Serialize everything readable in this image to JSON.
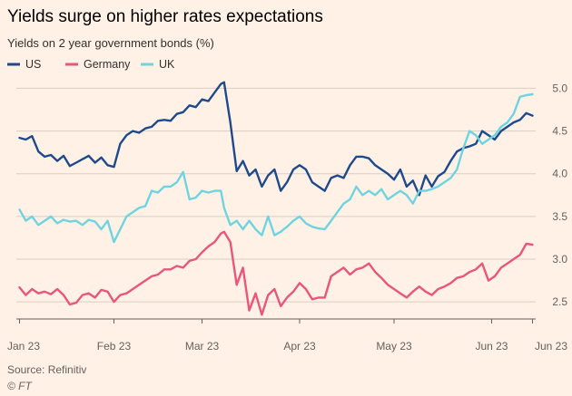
{
  "chart_data": {
    "type": "line",
    "title": "Yields surge on higher rates expectations",
    "subtitle": "Yields on 2 year government bonds (%)",
    "source": "Source: Refinitiv",
    "credit": "© FT",
    "x_tick_labels": [
      "Jan 23",
      "Feb 23",
      "Mar 23",
      "Apr 23",
      "May 23",
      "Jun 23",
      "Jun 23"
    ],
    "x_tick_dates": [
      "2023-01-02",
      "2023-02-01",
      "2023-03-01",
      "2023-04-01",
      "2023-05-01",
      "2023-06-01",
      "2023-06-14"
    ],
    "x_range": [
      "2023-01-01",
      "2023-06-15"
    ],
    "ylim": [
      2.3,
      5.1
    ],
    "y_ticks": [
      2.5,
      3.0,
      3.5,
      4.0,
      4.5,
      5.0
    ],
    "y_tick_labels": [
      "2.5",
      "3.0",
      "3.5",
      "4.0",
      "4.5",
      "5.0"
    ],
    "legend_position": "top-left",
    "grid": true,
    "series": [
      {
        "name": "US",
        "color": "#1e4a8c",
        "x": [
          "2023-01-02",
          "2023-01-04",
          "2023-01-06",
          "2023-01-08",
          "2023-01-10",
          "2023-01-12",
          "2023-01-14",
          "2023-01-16",
          "2023-01-18",
          "2023-01-20",
          "2023-01-22",
          "2023-01-24",
          "2023-01-26",
          "2023-01-28",
          "2023-01-30",
          "2023-02-01",
          "2023-02-03",
          "2023-02-05",
          "2023-02-07",
          "2023-02-09",
          "2023-02-11",
          "2023-02-13",
          "2023-02-15",
          "2023-02-17",
          "2023-02-19",
          "2023-02-21",
          "2023-02-23",
          "2023-02-25",
          "2023-02-27",
          "2023-03-01",
          "2023-03-03",
          "2023-03-05",
          "2023-03-07",
          "2023-03-08",
          "2023-03-10",
          "2023-03-12",
          "2023-03-14",
          "2023-03-16",
          "2023-03-18",
          "2023-03-20",
          "2023-03-22",
          "2023-03-24",
          "2023-03-26",
          "2023-03-28",
          "2023-03-30",
          "2023-04-01",
          "2023-04-03",
          "2023-04-05",
          "2023-04-07",
          "2023-04-09",
          "2023-04-11",
          "2023-04-13",
          "2023-04-15",
          "2023-04-17",
          "2023-04-19",
          "2023-04-21",
          "2023-04-23",
          "2023-04-25",
          "2023-04-27",
          "2023-04-29",
          "2023-05-01",
          "2023-05-03",
          "2023-05-05",
          "2023-05-07",
          "2023-05-09",
          "2023-05-11",
          "2023-05-13",
          "2023-05-15",
          "2023-05-17",
          "2023-05-19",
          "2023-05-21",
          "2023-05-23",
          "2023-05-25",
          "2023-05-27",
          "2023-05-29",
          "2023-05-31",
          "2023-06-02",
          "2023-06-04",
          "2023-06-06",
          "2023-06-08",
          "2023-06-10",
          "2023-06-12",
          "2023-06-14"
        ],
        "values": [
          4.42,
          4.4,
          4.44,
          4.26,
          4.2,
          4.22,
          4.15,
          4.21,
          4.09,
          4.13,
          4.17,
          4.21,
          4.13,
          4.19,
          4.1,
          4.08,
          4.35,
          4.45,
          4.5,
          4.48,
          4.53,
          4.55,
          4.62,
          4.63,
          4.62,
          4.7,
          4.72,
          4.8,
          4.78,
          4.87,
          4.85,
          4.95,
          5.05,
          5.07,
          4.6,
          4.03,
          4.15,
          3.98,
          4.05,
          3.85,
          3.98,
          4.05,
          3.8,
          3.9,
          4.05,
          4.1,
          4.05,
          3.9,
          3.85,
          3.8,
          3.95,
          3.98,
          3.95,
          4.1,
          4.2,
          4.2,
          4.18,
          4.1,
          4.05,
          4.0,
          3.93,
          4.05,
          3.85,
          3.92,
          3.75,
          3.98,
          3.85,
          3.97,
          4.02,
          4.15,
          4.26,
          4.3,
          4.32,
          4.35,
          4.5,
          4.45,
          4.4,
          4.5,
          4.55,
          4.6,
          4.63,
          4.71,
          4.68
        ]
      },
      {
        "name": "Germany",
        "color": "#e8577a",
        "x": [
          "2023-01-02",
          "2023-01-04",
          "2023-01-06",
          "2023-01-08",
          "2023-01-10",
          "2023-01-12",
          "2023-01-14",
          "2023-01-16",
          "2023-01-18",
          "2023-01-20",
          "2023-01-22",
          "2023-01-24",
          "2023-01-26",
          "2023-01-28",
          "2023-01-30",
          "2023-02-01",
          "2023-02-03",
          "2023-02-05",
          "2023-02-07",
          "2023-02-09",
          "2023-02-11",
          "2023-02-13",
          "2023-02-15",
          "2023-02-17",
          "2023-02-19",
          "2023-02-21",
          "2023-02-23",
          "2023-02-25",
          "2023-02-27",
          "2023-03-01",
          "2023-03-03",
          "2023-03-05",
          "2023-03-07",
          "2023-03-08",
          "2023-03-10",
          "2023-03-12",
          "2023-03-14",
          "2023-03-16",
          "2023-03-18",
          "2023-03-20",
          "2023-03-22",
          "2023-03-24",
          "2023-03-26",
          "2023-03-28",
          "2023-03-30",
          "2023-04-01",
          "2023-04-03",
          "2023-04-05",
          "2023-04-07",
          "2023-04-09",
          "2023-04-11",
          "2023-04-13",
          "2023-04-15",
          "2023-04-17",
          "2023-04-19",
          "2023-04-21",
          "2023-04-23",
          "2023-04-25",
          "2023-04-27",
          "2023-04-29",
          "2023-05-01",
          "2023-05-03",
          "2023-05-05",
          "2023-05-07",
          "2023-05-09",
          "2023-05-11",
          "2023-05-13",
          "2023-05-15",
          "2023-05-17",
          "2023-05-19",
          "2023-05-21",
          "2023-05-23",
          "2023-05-25",
          "2023-05-27",
          "2023-05-29",
          "2023-05-31",
          "2023-06-02",
          "2023-06-04",
          "2023-06-06",
          "2023-06-08",
          "2023-06-10",
          "2023-06-12",
          "2023-06-14"
        ],
        "values": [
          2.67,
          2.58,
          2.65,
          2.6,
          2.62,
          2.59,
          2.65,
          2.58,
          2.47,
          2.49,
          2.58,
          2.6,
          2.55,
          2.64,
          2.62,
          2.5,
          2.58,
          2.6,
          2.65,
          2.7,
          2.75,
          2.8,
          2.82,
          2.88,
          2.88,
          2.92,
          2.9,
          2.98,
          3.0,
          3.08,
          3.15,
          3.2,
          3.3,
          3.32,
          3.2,
          2.7,
          2.9,
          2.4,
          2.6,
          2.35,
          2.58,
          2.65,
          2.45,
          2.55,
          2.62,
          2.72,
          2.65,
          2.53,
          2.55,
          2.55,
          2.8,
          2.85,
          2.9,
          2.82,
          2.88,
          2.9,
          2.95,
          2.85,
          2.78,
          2.7,
          2.65,
          2.6,
          2.55,
          2.62,
          2.68,
          2.62,
          2.58,
          2.65,
          2.68,
          2.72,
          2.78,
          2.8,
          2.85,
          2.88,
          2.95,
          2.75,
          2.8,
          2.9,
          2.95,
          3.0,
          3.05,
          3.18,
          3.17
        ]
      },
      {
        "name": "UK",
        "color": "#6fd4e0",
        "x": [
          "2023-01-02",
          "2023-01-04",
          "2023-01-06",
          "2023-01-08",
          "2023-01-10",
          "2023-01-12",
          "2023-01-14",
          "2023-01-16",
          "2023-01-18",
          "2023-01-20",
          "2023-01-22",
          "2023-01-24",
          "2023-01-26",
          "2023-01-28",
          "2023-01-30",
          "2023-02-01",
          "2023-02-03",
          "2023-02-05",
          "2023-02-07",
          "2023-02-09",
          "2023-02-11",
          "2023-02-13",
          "2023-02-15",
          "2023-02-17",
          "2023-02-19",
          "2023-02-21",
          "2023-02-23",
          "2023-02-25",
          "2023-02-27",
          "2023-03-01",
          "2023-03-03",
          "2023-03-05",
          "2023-03-07",
          "2023-03-08",
          "2023-03-10",
          "2023-03-12",
          "2023-03-14",
          "2023-03-16",
          "2023-03-18",
          "2023-03-20",
          "2023-03-22",
          "2023-03-24",
          "2023-03-26",
          "2023-03-28",
          "2023-03-30",
          "2023-04-01",
          "2023-04-03",
          "2023-04-05",
          "2023-04-07",
          "2023-04-09",
          "2023-04-11",
          "2023-04-13",
          "2023-04-15",
          "2023-04-17",
          "2023-04-19",
          "2023-04-21",
          "2023-04-23",
          "2023-04-25",
          "2023-04-27",
          "2023-04-29",
          "2023-05-01",
          "2023-05-03",
          "2023-05-05",
          "2023-05-07",
          "2023-05-09",
          "2023-05-11",
          "2023-05-13",
          "2023-05-15",
          "2023-05-17",
          "2023-05-19",
          "2023-05-21",
          "2023-05-23",
          "2023-05-25",
          "2023-05-27",
          "2023-05-29",
          "2023-05-31",
          "2023-06-02",
          "2023-06-04",
          "2023-06-06",
          "2023-06-08",
          "2023-06-10",
          "2023-06-12",
          "2023-06-14"
        ],
        "values": [
          3.58,
          3.45,
          3.5,
          3.4,
          3.45,
          3.5,
          3.42,
          3.46,
          3.44,
          3.45,
          3.4,
          3.46,
          3.44,
          3.35,
          3.45,
          3.2,
          3.35,
          3.5,
          3.55,
          3.6,
          3.62,
          3.8,
          3.78,
          3.85,
          3.85,
          3.9,
          4.02,
          3.7,
          3.72,
          3.8,
          3.78,
          3.8,
          3.8,
          3.6,
          3.4,
          3.45,
          3.35,
          3.45,
          3.35,
          3.28,
          3.5,
          3.28,
          3.32,
          3.38,
          3.45,
          3.5,
          3.42,
          3.38,
          3.36,
          3.35,
          3.45,
          3.55,
          3.65,
          3.7,
          3.85,
          3.75,
          3.8,
          3.75,
          3.82,
          3.7,
          3.75,
          3.8,
          3.75,
          3.65,
          3.8,
          3.8,
          3.82,
          3.85,
          3.9,
          3.95,
          4.05,
          4.3,
          4.5,
          4.45,
          4.35,
          4.4,
          4.45,
          4.55,
          4.6,
          4.7,
          4.9,
          4.92,
          4.93
        ]
      }
    ]
  }
}
